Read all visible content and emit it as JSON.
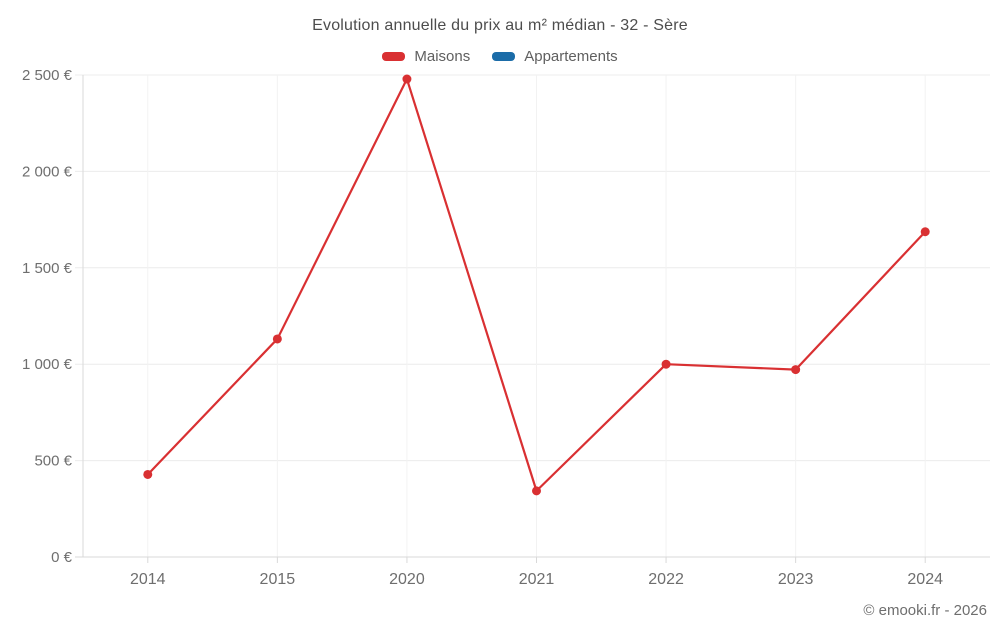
{
  "chart_data": {
    "type": "line",
    "title": "Evolution annuelle du prix au m² médian - 32 - Sère",
    "categories": [
      "2014",
      "2015",
      "2020",
      "2021",
      "2022",
      "2023",
      "2024"
    ],
    "series": [
      {
        "name": "Maisons",
        "color": "#d93032",
        "values": [
          428,
          1131,
          2479,
          343,
          1000,
          972,
          1687
        ]
      },
      {
        "name": "Appartements",
        "color": "#1b6ca8",
        "values": []
      }
    ],
    "xlabel": "",
    "ylabel": "",
    "ylim": [
      0,
      2500
    ],
    "ytick_step": 500,
    "ytick_labels": [
      "0 €",
      "500 €",
      "1 000 €",
      "1 500 €",
      "2 000 €",
      "2 500 €"
    ],
    "grid": true,
    "legend_position": "top"
  },
  "footer": {
    "credit": "© emooki.fr - 2026"
  },
  "colors": {
    "background": "#ffffff",
    "title_text": "#4d4d4d",
    "tick_text": "#6e6e6e",
    "grid_horizontal": "#ececec",
    "grid_vertical": "#f2f2f2",
    "axis_line": "#d9d9d9",
    "maisons": "#d93032",
    "appartements": "#1b6ca8"
  }
}
